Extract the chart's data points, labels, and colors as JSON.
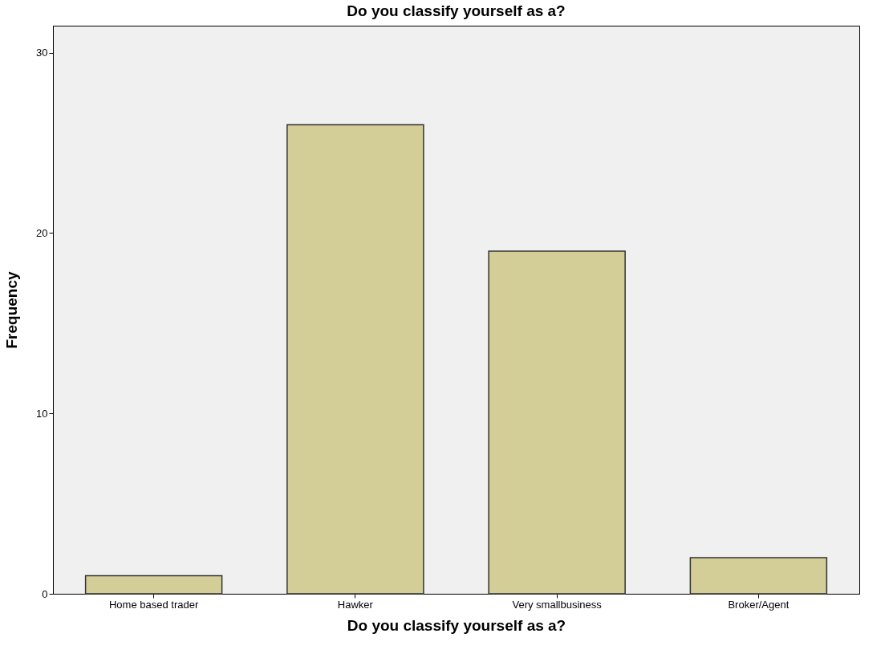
{
  "chart_data": {
    "type": "bar",
    "title": "Do you classify yourself as a?",
    "xlabel": "Do you classify yourself as a?",
    "ylabel": "Frequency",
    "categories": [
      "Home based trader",
      "Hawker",
      "Very smallbusiness",
      "Broker/Agent"
    ],
    "values": [
      1,
      26,
      19,
      2
    ],
    "color": "#d3ce97",
    "ylim": [
      0,
      31.5
    ],
    "yticks": [
      0,
      10,
      20,
      30
    ],
    "grid": false
  }
}
